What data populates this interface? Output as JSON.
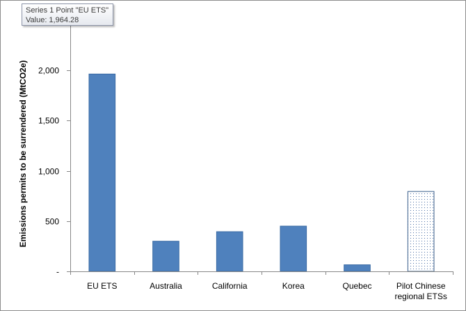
{
  "tooltip": {
    "line1": "Series 1 Point \"EU ETS\"",
    "line2": "Value: 1,964.28"
  },
  "chart_data": {
    "type": "bar",
    "title": "",
    "xlabel": "",
    "ylabel": "Emissions permits to be surrendered (MtCO2e)",
    "categories": [
      "EU ETS",
      "Australia",
      "California",
      "Korea",
      "Quebec",
      "Pilot Chinese regional ETSs"
    ],
    "category_lines": [
      [
        "EU ETS"
      ],
      [
        "Australia"
      ],
      [
        "California"
      ],
      [
        "Korea"
      ],
      [
        "Quebec"
      ],
      [
        "Pilot Chinese",
        "regional ETSs"
      ]
    ],
    "values": [
      1964.28,
      300,
      395,
      450,
      65,
      795
    ],
    "styles": [
      "solid",
      "solid",
      "solid",
      "solid",
      "solid",
      "dotted"
    ],
    "ylim": [
      0,
      2500
    ],
    "yticks": [
      0,
      500,
      1000,
      1500,
      2000,
      2500
    ],
    "ytick_labels": [
      "-",
      "500",
      "1,000",
      "1,500",
      "2,000",
      ""
    ],
    "grid": false,
    "legend": "none",
    "colors": {
      "bar": "#4f81bd",
      "bar_edge": "#3a6aa3",
      "pattern_edge": "#385d8a",
      "pattern_dot": "#4a6fa5",
      "axis": "#868686"
    }
  }
}
